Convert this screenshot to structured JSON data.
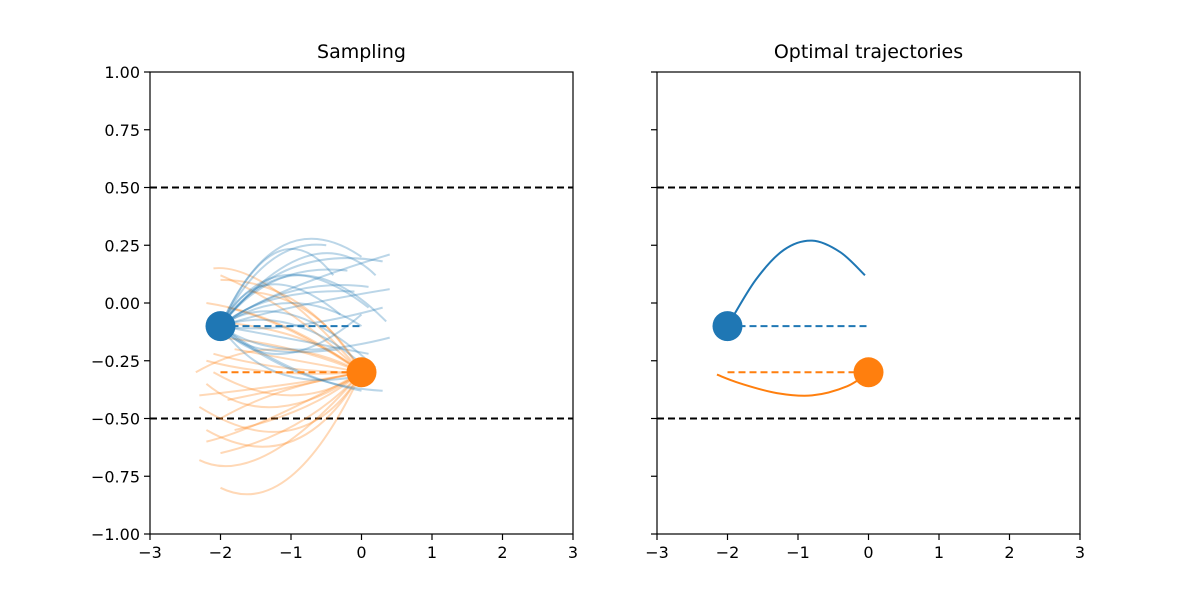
{
  "chart_data": [
    {
      "type": "line",
      "title": "Sampling",
      "xlabel": "",
      "ylabel": "",
      "xlim": [
        -3,
        3
      ],
      "ylim": [
        -1.0,
        1.0
      ],
      "x_ticks": [
        "−3",
        "−2",
        "−1",
        "0",
        "1",
        "2",
        "3"
      ],
      "y_ticks": [
        "1.00",
        "0.75",
        "0.50",
        "0.25",
        "0.00",
        "−0.25",
        "−0.50",
        "−0.75",
        "−1.00"
      ],
      "show_y_tick_labels": true,
      "grid": false,
      "colors": {
        "blue": "#1f77b4",
        "orange": "#ff7f0e",
        "boundary": "#000000"
      },
      "boundaries": [
        0.5,
        -0.5
      ],
      "agents": [
        {
          "color": "blue",
          "start": [
            -2.0,
            -0.1
          ],
          "goal_line": [
            [
              -2.0,
              -0.1
            ],
            [
              0.0,
              -0.1
            ]
          ]
        },
        {
          "color": "orange",
          "start": [
            0.0,
            -0.3
          ],
          "goal_line": [
            [
              -2.0,
              -0.3
            ],
            [
              0.0,
              -0.3
            ]
          ]
        }
      ],
      "sample_trajectories": {
        "blue": [
          [
            [
              -2.0,
              -0.1
            ],
            [
              -1.2,
              0.22
            ],
            [
              -0.4,
              0.12
            ]
          ],
          [
            [
              -2.0,
              -0.1
            ],
            [
              -1.1,
              0.25
            ],
            [
              0.0,
              0.2
            ]
          ],
          [
            [
              -2.0,
              -0.1
            ],
            [
              -1.0,
              0.15
            ],
            [
              0.3,
              0.18
            ]
          ],
          [
            [
              -2.0,
              -0.1
            ],
            [
              -1.1,
              0.05
            ],
            [
              0.4,
              0.21
            ]
          ],
          [
            [
              -2.0,
              -0.1
            ],
            [
              -1.0,
              0.05
            ],
            [
              0.1,
              0.07
            ]
          ],
          [
            [
              -2.0,
              -0.1
            ],
            [
              -1.0,
              -0.02
            ],
            [
              0.4,
              0.06
            ]
          ],
          [
            [
              -2.0,
              -0.1
            ],
            [
              -1.0,
              0.0
            ],
            [
              0.0,
              -0.1
            ]
          ],
          [
            [
              -2.0,
              -0.1
            ],
            [
              -1.0,
              -0.1
            ],
            [
              0.3,
              -0.02
            ]
          ],
          [
            [
              -2.0,
              -0.1
            ],
            [
              -1.1,
              -0.15
            ],
            [
              0.1,
              -0.22
            ]
          ],
          [
            [
              -2.0,
              -0.1
            ],
            [
              -1.0,
              -0.2
            ],
            [
              0.4,
              -0.15
            ]
          ],
          [
            [
              -2.0,
              -0.1
            ],
            [
              -1.0,
              -0.28
            ],
            [
              0.0,
              -0.38
            ]
          ],
          [
            [
              -2.0,
              -0.1
            ],
            [
              -0.9,
              -0.3
            ],
            [
              0.3,
              -0.38
            ]
          ],
          [
            [
              -2.0,
              -0.1
            ],
            [
              -1.2,
              -0.3
            ],
            [
              -0.1,
              -0.32
            ]
          ],
          [
            [
              -2.0,
              -0.1
            ],
            [
              -1.3,
              0.18
            ],
            [
              -0.5,
              0.25
            ]
          ],
          [
            [
              -2.0,
              -0.1
            ],
            [
              -1.2,
              0.1
            ],
            [
              -0.2,
              0.14
            ]
          ],
          [
            [
              -2.0,
              -0.1
            ],
            [
              -0.9,
              0.12
            ],
            [
              0.35,
              -0.08
            ]
          ],
          [
            [
              -2.0,
              -0.1
            ],
            [
              -1.0,
              -0.05
            ],
            [
              0.2,
              -0.28
            ]
          ],
          [
            [
              -2.0,
              -0.1
            ],
            [
              -1.4,
              -0.2
            ],
            [
              -0.3,
              -0.2
            ]
          ],
          [
            [
              -2.0,
              -0.1
            ],
            [
              -0.8,
              0.2
            ],
            [
              0.2,
              0.12
            ]
          ],
          [
            [
              -2.0,
              -0.1
            ],
            [
              -1.1,
              0.12
            ],
            [
              0.1,
              -0.02
            ]
          ],
          [
            [
              -2.0,
              -0.1
            ],
            [
              -1.2,
              0.02
            ],
            [
              -0.1,
              0.05
            ]
          ],
          [
            [
              -2.0,
              -0.1
            ],
            [
              -0.9,
              -0.1
            ],
            [
              0.2,
              -0.32
            ]
          ],
          [
            [
              -2.0,
              -0.1
            ],
            [
              -1.3,
              0.08
            ],
            [
              -0.3,
              -0.05
            ]
          ],
          [
            [
              -2.0,
              -0.1
            ],
            [
              -1.1,
              -0.22
            ],
            [
              0.0,
              -0.05
            ]
          ]
        ],
        "orange": [
          [
            [
              0.0,
              -0.3
            ],
            [
              -1.0,
              -0.75
            ],
            [
              -2.0,
              -0.8
            ]
          ],
          [
            [
              0.0,
              -0.3
            ],
            [
              -1.3,
              -0.65
            ],
            [
              -2.3,
              -0.68
            ]
          ],
          [
            [
              0.0,
              -0.3
            ],
            [
              -1.0,
              -0.55
            ],
            [
              -2.3,
              -0.45
            ]
          ],
          [
            [
              0.0,
              -0.3
            ],
            [
              -1.2,
              -0.45
            ],
            [
              -2.2,
              -0.35
            ]
          ],
          [
            [
              0.0,
              -0.3
            ],
            [
              -1.0,
              -0.4
            ],
            [
              -2.1,
              -0.3
            ]
          ],
          [
            [
              0.0,
              -0.3
            ],
            [
              -1.2,
              -0.3
            ],
            [
              -2.2,
              -0.25
            ]
          ],
          [
            [
              0.0,
              -0.3
            ],
            [
              -1.0,
              -0.2
            ],
            [
              -2.0,
              -0.15
            ]
          ],
          [
            [
              0.0,
              -0.3
            ],
            [
              -1.1,
              -0.1
            ],
            [
              -2.2,
              0.0
            ]
          ],
          [
            [
              0.0,
              -0.3
            ],
            [
              -1.0,
              -0.05
            ],
            [
              -2.0,
              0.12
            ]
          ],
          [
            [
              0.0,
              -0.3
            ],
            [
              -1.2,
              0.05
            ],
            [
              -2.1,
              0.15
            ]
          ],
          [
            [
              0.0,
              -0.3
            ],
            [
              -0.9,
              0.0
            ],
            [
              -2.0,
              0.1
            ]
          ],
          [
            [
              0.0,
              -0.3
            ],
            [
              -1.0,
              -0.35
            ],
            [
              -2.3,
              -0.4
            ]
          ],
          [
            [
              0.0,
              -0.3
            ],
            [
              -1.3,
              -0.5
            ],
            [
              -2.2,
              -0.6
            ]
          ],
          [
            [
              0.0,
              -0.3
            ],
            [
              -0.8,
              -0.45
            ],
            [
              -1.8,
              -0.55
            ]
          ],
          [
            [
              0.0,
              -0.3
            ],
            [
              -0.9,
              -0.25
            ],
            [
              -1.8,
              -0.2
            ]
          ],
          [
            [
              0.0,
              -0.3
            ],
            [
              -1.1,
              -0.38
            ],
            [
              -2.0,
              -0.5
            ]
          ],
          [
            [
              0.0,
              -0.3
            ],
            [
              -0.9,
              -0.15
            ],
            [
              -2.1,
              -0.08
            ]
          ],
          [
            [
              0.0,
              -0.3
            ],
            [
              -1.0,
              -0.6
            ],
            [
              -2.2,
              -0.55
            ]
          ],
          [
            [
              0.0,
              -0.3
            ],
            [
              -0.7,
              -0.05
            ],
            [
              -1.6,
              0.05
            ]
          ],
          [
            [
              0.0,
              -0.3
            ],
            [
              -1.2,
              -0.2
            ],
            [
              -2.35,
              -0.3
            ]
          ],
          [
            [
              0.0,
              -0.3
            ],
            [
              -0.8,
              -0.35
            ],
            [
              -1.9,
              -0.42
            ]
          ],
          [
            [
              0.0,
              -0.3
            ],
            [
              -1.0,
              -0.12
            ],
            [
              -1.9,
              -0.02
            ]
          ],
          [
            [
              0.0,
              -0.3
            ],
            [
              -0.9,
              -0.52
            ],
            [
              -2.0,
              -0.65
            ]
          ],
          [
            [
              0.0,
              -0.3
            ],
            [
              -1.1,
              -0.28
            ],
            [
              -2.1,
              -0.22
            ]
          ]
        ]
      }
    },
    {
      "type": "line",
      "title": "Optimal trajectories",
      "xlabel": "",
      "ylabel": "",
      "xlim": [
        -3,
        3
      ],
      "ylim": [
        -1.0,
        1.0
      ],
      "x_ticks": [
        "−3",
        "−2",
        "−1",
        "0",
        "1",
        "2",
        "3"
      ],
      "y_ticks": [
        "1.00",
        "0.75",
        "0.50",
        "0.25",
        "0.00",
        "−0.25",
        "−0.50",
        "−0.75",
        "−1.00"
      ],
      "show_y_tick_labels": false,
      "grid": false,
      "colors": {
        "blue": "#1f77b4",
        "orange": "#ff7f0e",
        "boundary": "#000000"
      },
      "boundaries": [
        0.5,
        -0.5
      ],
      "agents": [
        {
          "color": "blue",
          "start": [
            -2.0,
            -0.1
          ],
          "goal_line": [
            [
              -2.0,
              -0.1
            ],
            [
              0.0,
              -0.1
            ]
          ]
        },
        {
          "color": "orange",
          "start": [
            0.0,
            -0.3
          ],
          "goal_line": [
            [
              -2.0,
              -0.3
            ],
            [
              0.0,
              -0.3
            ]
          ]
        }
      ],
      "optimal_trajectories": {
        "blue": [
          [
            -2.0,
            -0.1
          ],
          [
            -1.6,
            0.1
          ],
          [
            -1.2,
            0.23
          ],
          [
            -0.8,
            0.27
          ],
          [
            -0.4,
            0.22
          ],
          [
            -0.05,
            0.12
          ]
        ],
        "orange": [
          [
            0.0,
            -0.3
          ],
          [
            -0.3,
            -0.36
          ],
          [
            -0.8,
            -0.4
          ],
          [
            -1.3,
            -0.39
          ],
          [
            -1.8,
            -0.35
          ],
          [
            -2.15,
            -0.31
          ]
        ]
      }
    }
  ]
}
